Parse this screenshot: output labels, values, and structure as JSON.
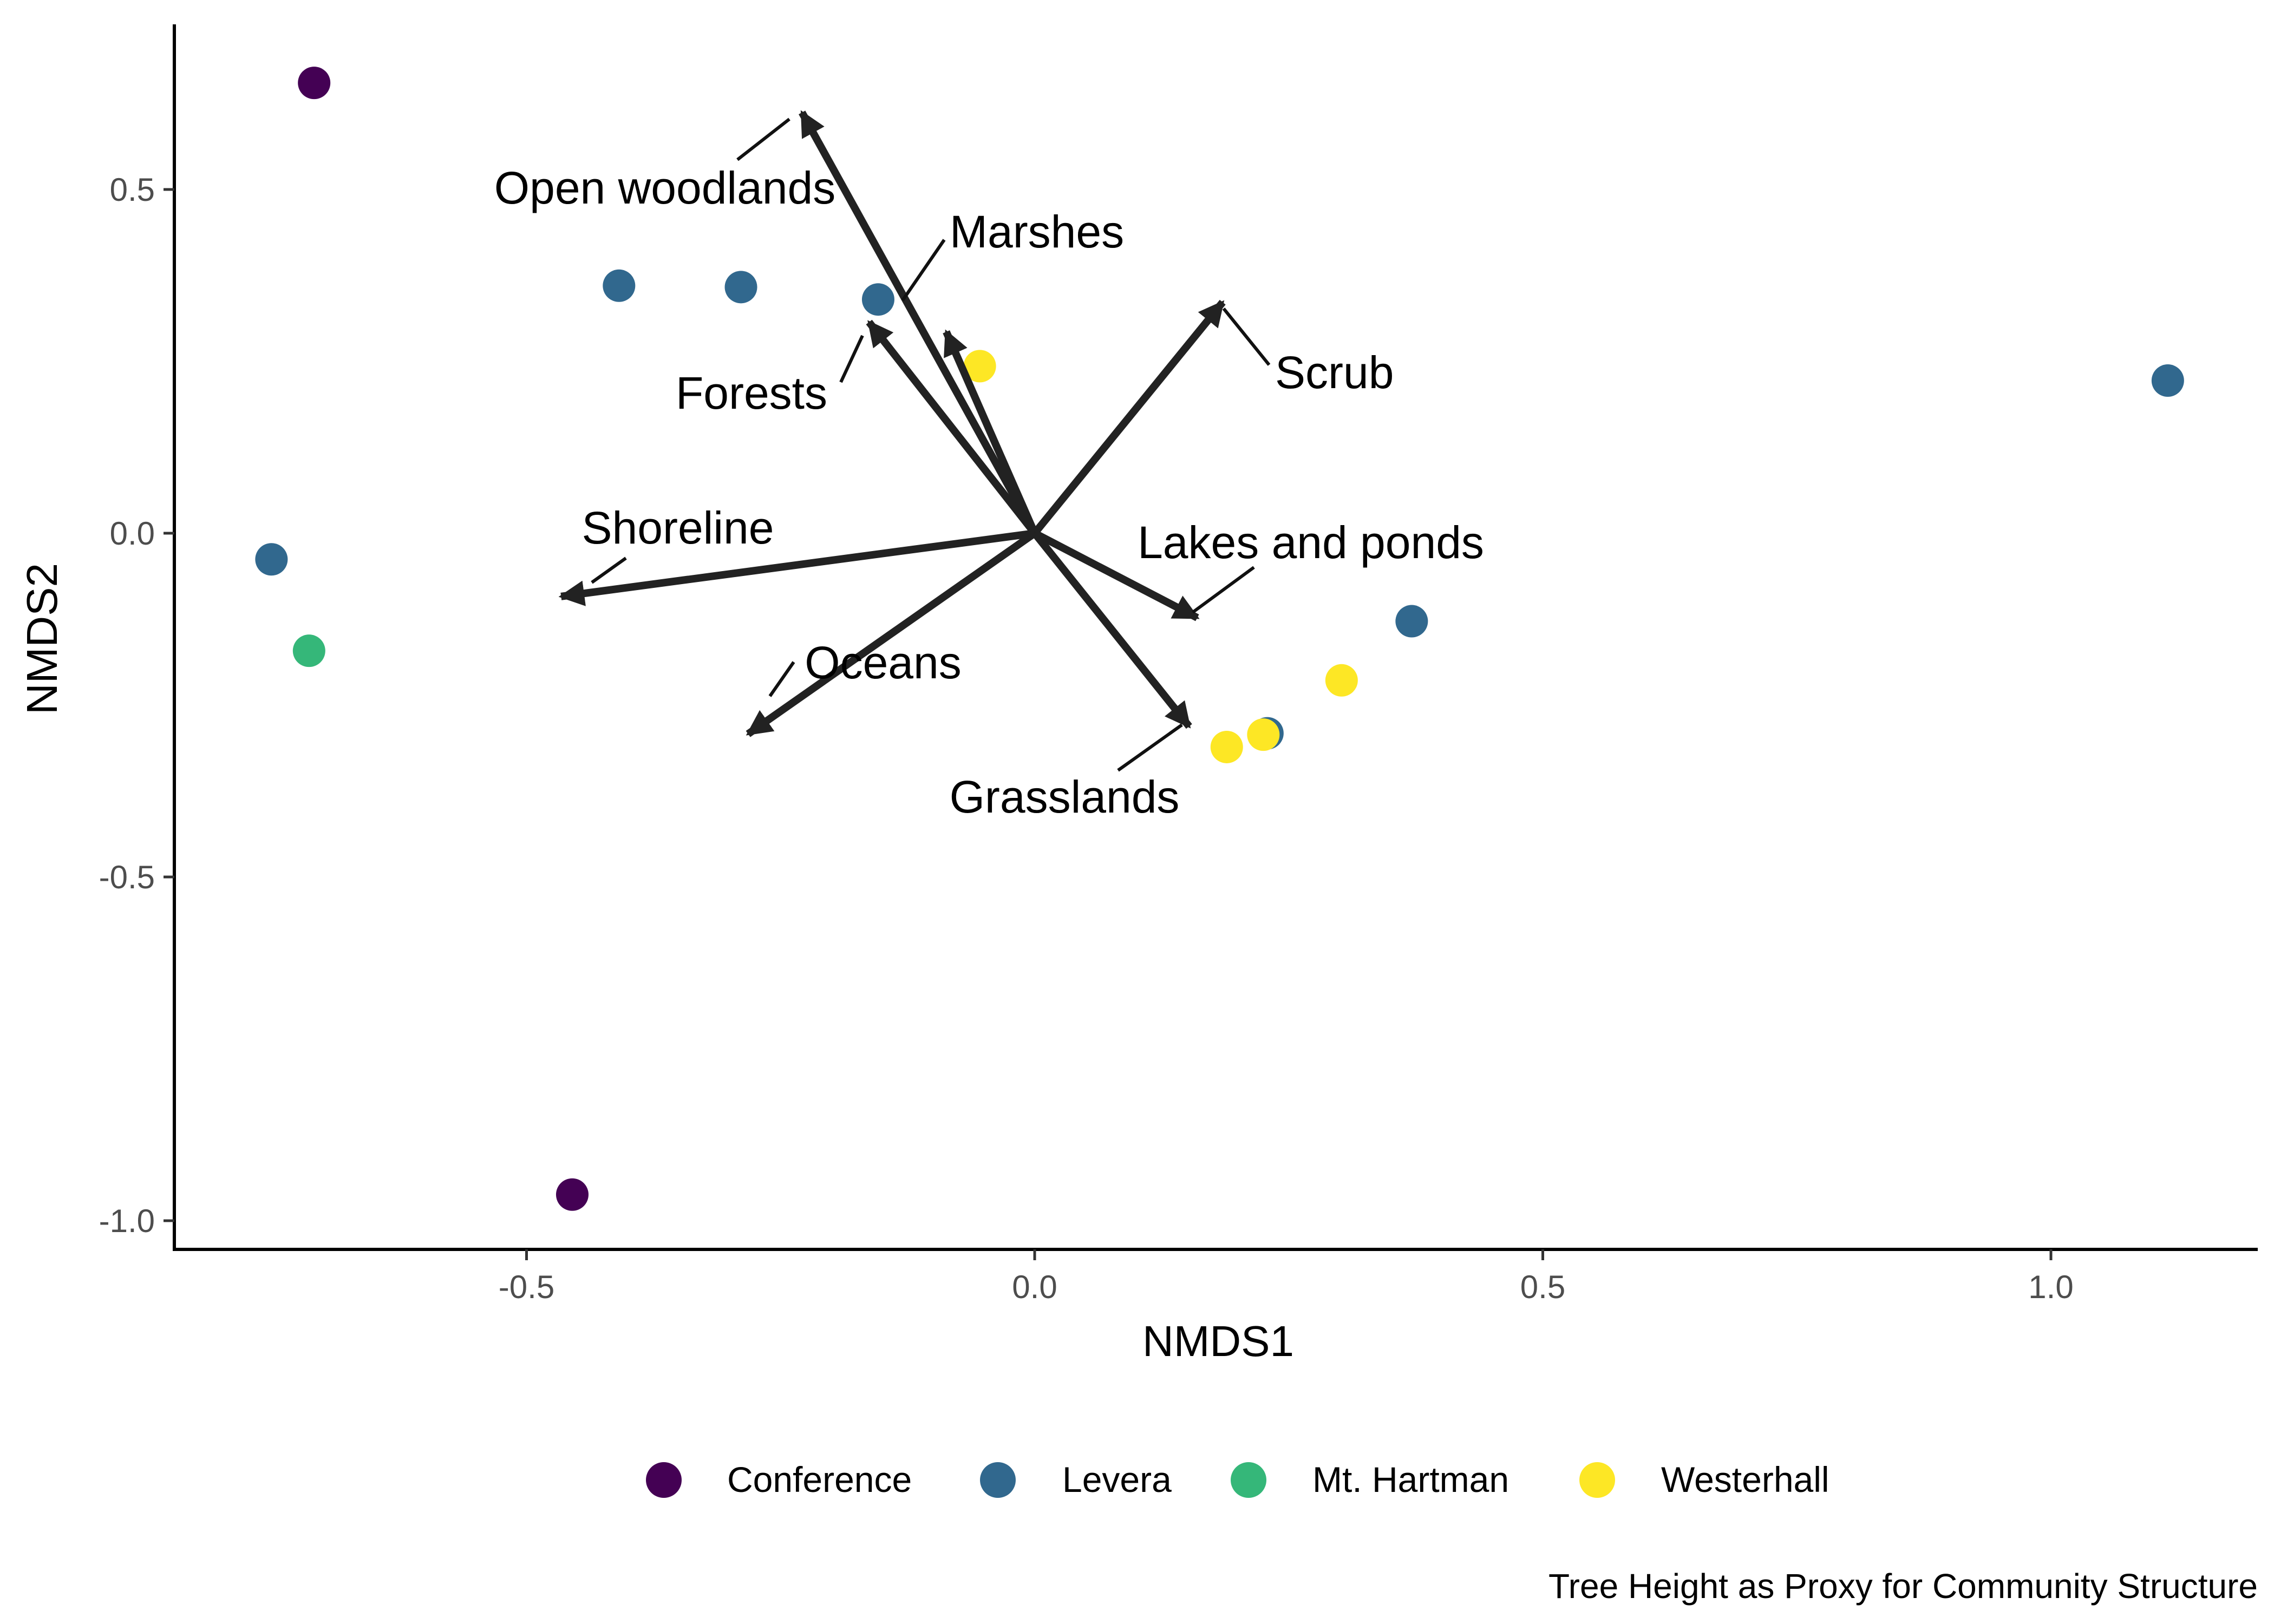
{
  "chart_data": {
    "type": "scatter",
    "xlabel": "NMDS1",
    "ylabel": "NMDS2",
    "caption": "Tree Height as Proxy for Community Structure",
    "xlim": [
      -0.85,
      1.2
    ],
    "ylim": [
      -1.04,
      0.74
    ],
    "x_ticks": [
      -0.5,
      0.0,
      0.5,
      1.0
    ],
    "x_tick_labels": [
      "-0.5",
      "0.0",
      "0.5",
      "1.0"
    ],
    "y_ticks": [
      -1.0,
      -0.5,
      0.0,
      0.5
    ],
    "y_tick_labels": [
      "-1.0",
      "-0.5",
      "0.0",
      "0.5"
    ],
    "grid": false,
    "legend_position": "bottom",
    "groups": [
      {
        "name": "Conference",
        "color": "#440154"
      },
      {
        "name": "Levera",
        "color": "#31688E"
      },
      {
        "name": "Mt. Hartman",
        "color": "#35B779"
      },
      {
        "name": "Westerhall",
        "color": "#FDE725"
      }
    ],
    "points": [
      {
        "x": -0.709,
        "y": 0.655,
        "group": "Conference"
      },
      {
        "x": -0.455,
        "y": -0.962,
        "group": "Conference"
      },
      {
        "x": -0.409,
        "y": 0.36,
        "group": "Levera"
      },
      {
        "x": -0.289,
        "y": 0.358,
        "group": "Levera"
      },
      {
        "x": -0.154,
        "y": 0.34,
        "group": "Levera"
      },
      {
        "x": -0.751,
        "y": -0.038,
        "group": "Levera"
      },
      {
        "x": 0.371,
        "y": -0.128,
        "group": "Levera"
      },
      {
        "x": 0.229,
        "y": -0.291,
        "group": "Levera"
      },
      {
        "x": 1.115,
        "y": 0.222,
        "group": "Levera"
      },
      {
        "x": -0.714,
        "y": -0.171,
        "group": "Mt. Hartman"
      },
      {
        "x": -0.054,
        "y": 0.243,
        "group": "Westerhall"
      },
      {
        "x": 0.302,
        "y": -0.214,
        "group": "Westerhall"
      },
      {
        "x": 0.189,
        "y": -0.311,
        "group": "Westerhall"
      },
      {
        "x": 0.225,
        "y": -0.293,
        "group": "Westerhall"
      }
    ],
    "vectors": [
      {
        "name": "Open woodlands",
        "x": -0.229,
        "y": 0.612
      },
      {
        "name": "Marshes",
        "x": -0.087,
        "y": 0.293
      },
      {
        "name": "Forests",
        "x": -0.163,
        "y": 0.307
      },
      {
        "name": "Scrub",
        "x": 0.185,
        "y": 0.336
      },
      {
        "name": "Shoreline",
        "x": -0.466,
        "y": -0.092
      },
      {
        "name": "Lakes and ponds",
        "x": 0.16,
        "y": -0.123
      },
      {
        "name": "Oceans",
        "x": -0.282,
        "y": -0.292
      },
      {
        "name": "Grasslands",
        "x": 0.152,
        "y": -0.281
      }
    ]
  }
}
